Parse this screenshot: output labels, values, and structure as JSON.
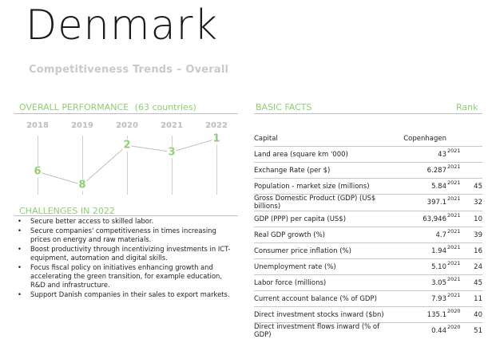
{
  "header": {
    "country": "Denmark",
    "subtitle": "Competitiveness Trends – Overall"
  },
  "performance": {
    "title": "OVERALL PERFORMANCE",
    "count": "(63 countries)",
    "years": [
      "2018",
      "2019",
      "2020",
      "2021",
      "2022"
    ],
    "ranks": [
      6,
      8,
      2,
      3,
      1
    ]
  },
  "challenges": {
    "title": "CHALLENGES IN 2022",
    "items": [
      "Secure better access to skilled labor.",
      "Secure companies' competitiveness in times increasing prices on energy and raw materials.",
      "Boost productivity through incentivizing investments in ICT-equipment, automation and digital skills.",
      "Focus fiscal policy on initiatives enhancing growth and accelerating the green transition, for example education, R&D and infrastructure.",
      "Support Danish companies in their sales to export markets."
    ]
  },
  "facts": {
    "title": "BASIC FACTS",
    "rank_header": "Rank",
    "rows": [
      {
        "label": "Capital",
        "value": "Copenhagen",
        "year": "",
        "rank": ""
      },
      {
        "label": "Land area (square km '000)",
        "value": "43",
        "year": "2021",
        "rank": ""
      },
      {
        "label": "Exchange Rate (per $)",
        "value": "6.287",
        "year": "2021",
        "rank": ""
      },
      {
        "label": "Population - market size (millions)",
        "value": "5.84",
        "year": "2021",
        "rank": "45"
      },
      {
        "label": "Gross Domestic Product (GDP) (US$ billions)",
        "value": "397.1",
        "year": "2021",
        "rank": "32"
      },
      {
        "label": "GDP (PPP) per capita (US$)",
        "value": "63,946",
        "year": "2021",
        "rank": "10"
      },
      {
        "label": "Real GDP growth (%)",
        "value": "4.7",
        "year": "2021",
        "rank": "39"
      },
      {
        "label": "Consumer price inflation (%)",
        "value": "1.94",
        "year": "2021",
        "rank": "16"
      },
      {
        "label": "Unemployment rate (%)",
        "value": "5.10",
        "year": "2021",
        "rank": "24"
      },
      {
        "label": "Labor force (millions)",
        "value": "3.05",
        "year": "2021",
        "rank": "45"
      },
      {
        "label": "Current account balance (% of GDP)",
        "value": "7.93",
        "year": "2021",
        "rank": "11"
      },
      {
        "label": "Direct investment stocks inward ($bn)",
        "value": "135.1",
        "year": "2020",
        "rank": "40"
      },
      {
        "label": "Direct investment flows inward (% of GDP)",
        "value": "0.44",
        "year": "2020",
        "rank": "51"
      }
    ]
  }
}
